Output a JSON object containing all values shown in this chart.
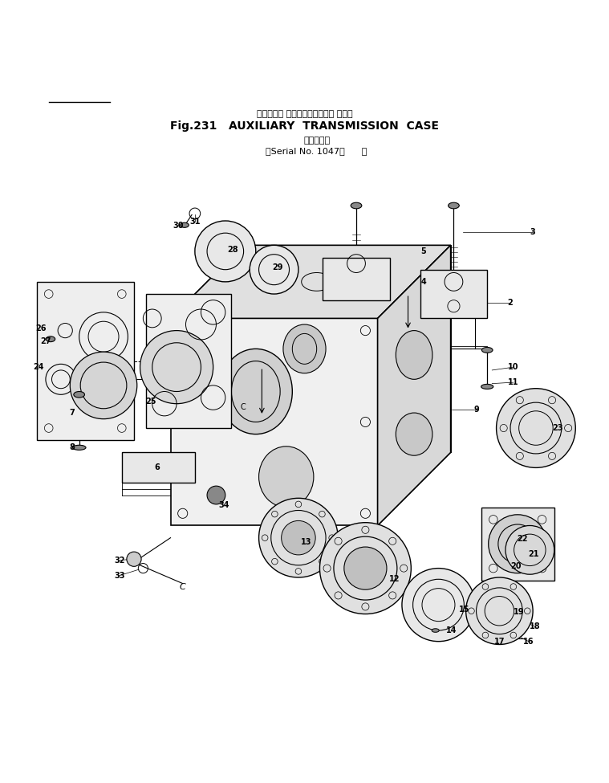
{
  "title_japanese": "オキジアリ トランスミッション ケース",
  "title_english": "Fig.231   AUXILIARY  TRANSMISSION  CASE",
  "subtitle_japanese": "（適用号機",
  "subtitle_english": "（Serial No. 1047～      ）",
  "bg_color": "#ffffff",
  "line_color": "#000000"
}
